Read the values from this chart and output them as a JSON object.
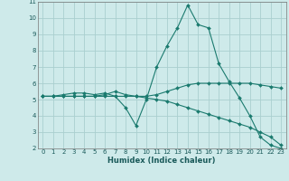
{
  "xlabel": "Humidex (Indice chaleur)",
  "background_color": "#ceeaea",
  "grid_color": "#aacfcf",
  "line_color": "#1a7a6e",
  "xlim": [
    -0.5,
    23.5
  ],
  "ylim": [
    2,
    11
  ],
  "xticks": [
    0,
    1,
    2,
    3,
    4,
    5,
    6,
    7,
    8,
    9,
    10,
    11,
    12,
    13,
    14,
    15,
    16,
    17,
    18,
    19,
    20,
    21,
    22,
    23
  ],
  "yticks": [
    2,
    3,
    4,
    5,
    6,
    7,
    8,
    9,
    10,
    11
  ],
  "series1_x": [
    0,
    1,
    2,
    3,
    4,
    5,
    6,
    7,
    8,
    9,
    10,
    11,
    12,
    13,
    14,
    15,
    16,
    17,
    18,
    19,
    20,
    21,
    22,
    23
  ],
  "series1_y": [
    5.2,
    5.2,
    5.3,
    5.4,
    5.4,
    5.3,
    5.4,
    5.2,
    4.5,
    3.4,
    5.0,
    7.0,
    8.3,
    9.4,
    10.8,
    9.6,
    9.4,
    7.2,
    6.1,
    5.1,
    4.0,
    2.7,
    2.2,
    2.0
  ],
  "series2_x": [
    0,
    1,
    2,
    3,
    4,
    5,
    6,
    7,
    8,
    9,
    10,
    11,
    12,
    13,
    14,
    15,
    16,
    17,
    18,
    19,
    20,
    21,
    22,
    23
  ],
  "series2_y": [
    5.2,
    5.2,
    5.2,
    5.2,
    5.2,
    5.2,
    5.3,
    5.5,
    5.3,
    5.2,
    5.2,
    5.3,
    5.5,
    5.7,
    5.9,
    6.0,
    6.0,
    6.0,
    6.0,
    6.0,
    6.0,
    5.9,
    5.8,
    5.7
  ],
  "series3_x": [
    0,
    1,
    2,
    3,
    4,
    5,
    6,
    7,
    8,
    9,
    10,
    11,
    12,
    13,
    14,
    15,
    16,
    17,
    18,
    19,
    20,
    21,
    22,
    23
  ],
  "series3_y": [
    5.2,
    5.2,
    5.2,
    5.2,
    5.2,
    5.2,
    5.2,
    5.2,
    5.2,
    5.2,
    5.1,
    5.0,
    4.9,
    4.7,
    4.5,
    4.3,
    4.1,
    3.9,
    3.7,
    3.5,
    3.3,
    3.0,
    2.7,
    2.2
  ],
  "xlabel_fontsize": 6,
  "tick_fontsize": 5,
  "marker_size": 2,
  "linewidth": 0.8
}
